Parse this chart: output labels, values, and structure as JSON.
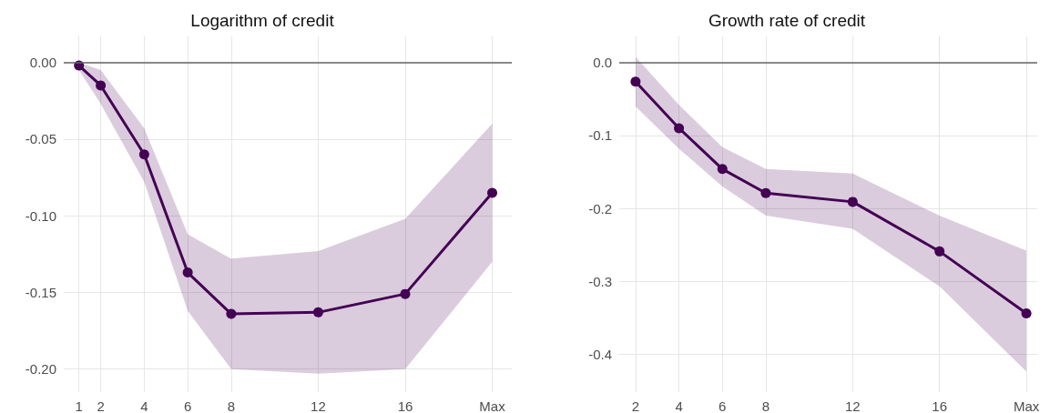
{
  "chart_data": [
    {
      "type": "line",
      "title": "Logarithm of credit",
      "x": [
        1,
        2,
        4,
        6,
        8,
        12,
        16,
        20
      ],
      "series": [
        {
          "color": "#440154",
          "values": [
            -0.002,
            -0.015,
            -0.06,
            -0.137,
            -0.164,
            -0.163,
            -0.151,
            -0.085
          ],
          "lower": [
            -0.005,
            -0.027,
            -0.078,
            -0.162,
            -0.2,
            -0.203,
            -0.2,
            -0.13
          ],
          "upper": [
            0.0,
            -0.005,
            -0.043,
            -0.112,
            -0.128,
            -0.123,
            -0.102,
            -0.04
          ]
        }
      ],
      "xlim": [
        0.3,
        20.9
      ],
      "xticks": [
        1,
        2,
        4,
        6,
        8,
        12,
        16,
        {
          "value": 20,
          "label": "Max"
        }
      ],
      "ylim": [
        -0.215,
        0.017
      ],
      "yticks": [
        {
          "value": 0,
          "label": "0.00"
        },
        {
          "value": -0.05,
          "label": "-0.05"
        },
        {
          "value": -0.1,
          "label": "-0.10"
        },
        {
          "value": -0.15,
          "label": "-0.15"
        },
        {
          "value": -0.2,
          "label": "-0.20"
        }
      ],
      "ref_lines": [
        {
          "axis": "y",
          "value": 0,
          "color": "#666666"
        }
      ],
      "grid": true,
      "marker": "circle",
      "line_style": "solid"
    },
    {
      "type": "line",
      "title": "Growth rate of credit",
      "x": [
        2,
        4,
        6,
        8,
        12,
        16,
        20
      ],
      "series": [
        {
          "color": "#440154",
          "values": [
            -0.026,
            -0.09,
            -0.146,
            -0.179,
            -0.191,
            -0.259,
            -0.344
          ],
          "lower": [
            -0.06,
            -0.118,
            -0.17,
            -0.21,
            -0.228,
            -0.307,
            -0.424
          ],
          "upper": [
            0.008,
            -0.058,
            -0.116,
            -0.146,
            -0.152,
            -0.21,
            -0.258
          ]
        }
      ],
      "xlim": [
        1.25,
        20.5
      ],
      "xticks": [
        2,
        4,
        6,
        8,
        12,
        16,
        {
          "value": 20,
          "label": "Max"
        }
      ],
      "ylim": [
        -0.452,
        0.036
      ],
      "yticks": [
        {
          "value": 0,
          "label": "0.0"
        },
        {
          "value": -0.1,
          "label": "-0.1"
        },
        {
          "value": -0.2,
          "label": "-0.2"
        },
        {
          "value": -0.3,
          "label": "-0.3"
        },
        {
          "value": -0.4,
          "label": "-0.4"
        }
      ],
      "ref_lines": [
        {
          "axis": "y",
          "value": 0,
          "color": "#666666"
        }
      ],
      "grid": true,
      "marker": "circle",
      "line_style": "solid"
    }
  ]
}
